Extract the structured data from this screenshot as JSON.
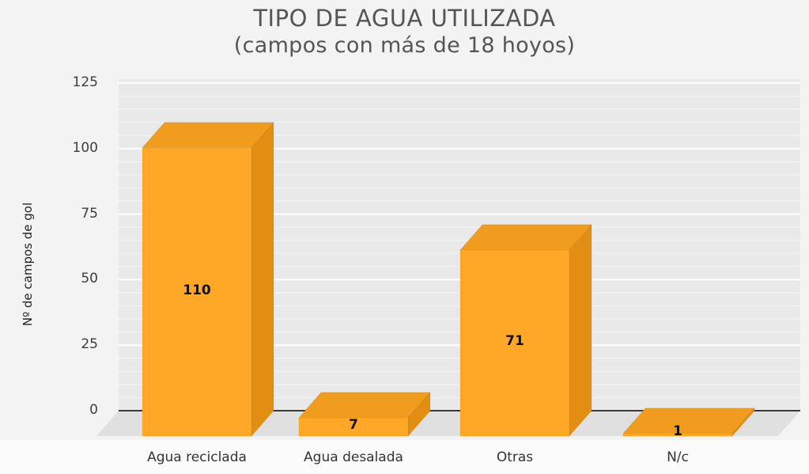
{
  "chart_data": {
    "type": "bar",
    "title": "TIPO DE AGUA UTILIZADA",
    "subtitle": "(campos con más de 18 hoyos)",
    "ylabel": "Nº de campos de gol",
    "xlabel": "",
    "categories": [
      "Agua reciclada",
      "Agua desalada",
      "Otras",
      "N/c"
    ],
    "values": [
      110,
      7,
      71,
      1
    ],
    "data_labels": [
      "110",
      "7",
      "71",
      "1"
    ],
    "yticks": [
      0,
      25,
      50,
      75,
      100,
      125
    ],
    "ylim": [
      0,
      125
    ],
    "grid": true,
    "legend": false,
    "style": "3d-bar"
  },
  "colors": {
    "bar_front": "#FFA828",
    "bar_top": "#F09C1E",
    "bar_side": "#E28E12",
    "wall": "#e9e9e9",
    "floor": "#e0e0e0",
    "grid_major": "#ffffff",
    "grid_minor": "#f5f5f5",
    "zero_axis": "#3a3a3a",
    "title_text": "#555555",
    "label_text": "#333333"
  }
}
